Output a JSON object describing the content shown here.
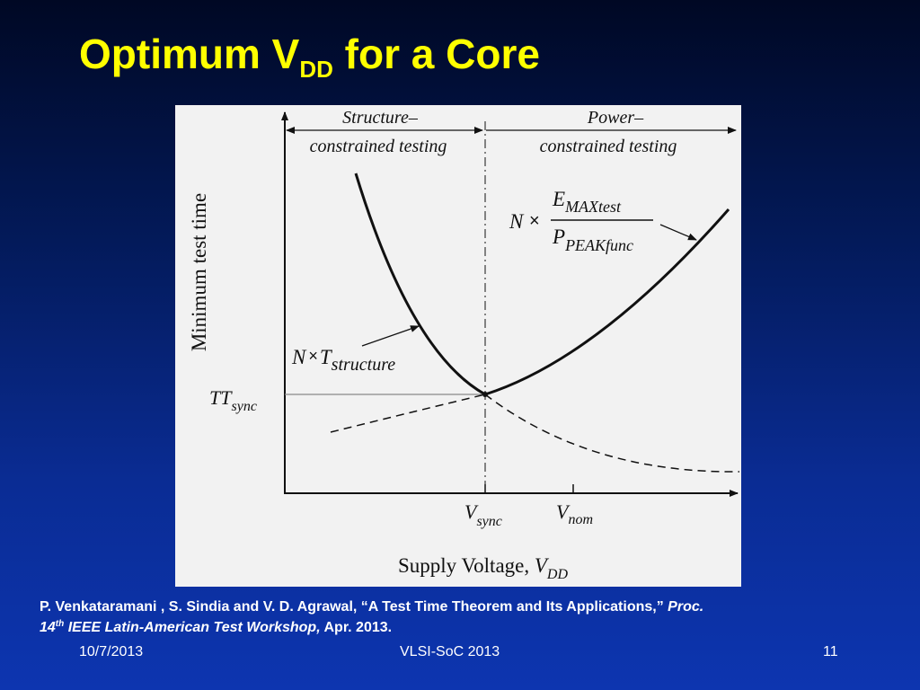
{
  "slide": {
    "title_main": "Optimum V",
    "title_sub": "DD",
    "title_rest": " for a Core"
  },
  "figure": {
    "region_left_line1": "Structure–",
    "region_left_line2": "constrained testing",
    "region_right_line1": "Power–",
    "region_right_line2": "constrained testing",
    "y_axis_label": "Minimum test time",
    "x_axis_label_main": "Supply Voltage, ",
    "x_axis_label_var": "V",
    "x_axis_label_sub": "DD",
    "y_tick_main": "TT",
    "y_tick_sub": "sync",
    "x_tick1_main": "V",
    "x_tick1_sub": "sync",
    "x_tick2_main": "V",
    "x_tick2_sub": "nom",
    "left_curve_label_n": "N",
    "times_symbol": "×",
    "left_curve_label_t": "T",
    "left_curve_label_sub": "structure",
    "right_curve_label_n": "N",
    "right_curve_numerator": "E",
    "right_curve_numerator_sub": "MAXtest",
    "right_curve_denominator": "P",
    "right_curve_denominator_sub": "PEAKfunc"
  },
  "reference": {
    "text_plain": "P. Venkataramani , S. Sindia and V. D. Agrawal, “A Test Time Theorem and Its Applications,” ",
    "text_italic1": "Proc.",
    "text_italic2": "14",
    "text_sup": "th",
    "text_italic3": " IEEE Latin-American Test Workshop,",
    "text_end": " Apr. 2013."
  },
  "footer": {
    "date": "10/7/2013",
    "conference": "VLSI-SoC 2013",
    "page": "11"
  },
  "colors": {
    "title": "#ffff00",
    "text": "#ffffff",
    "figure_background": "#f2f2f2",
    "figure_ink": "#111111"
  }
}
